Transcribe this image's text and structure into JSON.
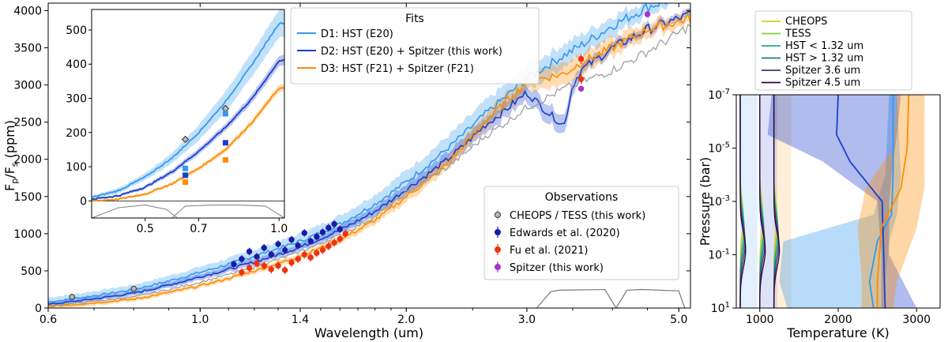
{
  "chart_data": [
    {
      "id": "main",
      "type": "line",
      "xscale": "log",
      "xlim": [
        0.6,
        5.2
      ],
      "ylim": [
        0,
        4100
      ],
      "xlabel": "Wavelength (um)",
      "ylabel": "F_p/F_s (ppm)",
      "xticks": [
        0.6,
        1.0,
        1.4,
        2.0,
        3.0,
        5.0
      ],
      "xtick_labels": [
        "0.6",
        "1.0",
        "1.4",
        "2.0",
        "3.0",
        "5.0"
      ],
      "yticks": [
        0,
        500,
        1000,
        1500,
        2000,
        2500,
        3000,
        3500,
        4000
      ],
      "ytick_labels": [
        "0",
        "500",
        "1000",
        "1500",
        "2000",
        "2500",
        "3000",
        "3500",
        "4000"
      ],
      "fits_legend_title": "Fits",
      "obs_legend_title": "Observations",
      "series": [
        {
          "name": "D1: HST (E20)",
          "color": "#3399ee",
          "x": [
            0.6,
            0.8,
            1.0,
            1.2,
            1.4,
            1.6,
            1.8,
            2.0,
            2.3,
            2.6,
            3.0,
            3.4,
            4.0,
            4.5,
            5.2
          ],
          "y": [
            80,
            250,
            480,
            700,
            900,
            1130,
            1400,
            1700,
            2150,
            2600,
            3100,
            3400,
            3800,
            4050,
            4250
          ],
          "band": [
            120,
            130,
            150,
            170,
            200,
            230,
            260,
            300,
            320,
            340,
            350,
            300,
            250,
            200,
            150
          ]
        },
        {
          "name": "D2: HST (E20) + Spitzer (this work)",
          "color": "#1a3fcc",
          "x": [
            0.6,
            0.8,
            1.0,
            1.2,
            1.4,
            1.6,
            1.8,
            2.0,
            2.3,
            2.6,
            3.0,
            3.2,
            3.4,
            3.5,
            3.6,
            4.0,
            4.5,
            5.2
          ],
          "y": [
            50,
            200,
            420,
            620,
            820,
            1050,
            1300,
            1600,
            2000,
            2450,
            2900,
            2650,
            2450,
            3000,
            3200,
            3500,
            3750,
            3950
          ],
          "band": [
            60,
            70,
            80,
            90,
            100,
            110,
            120,
            150,
            180,
            200,
            220,
            250,
            250,
            220,
            150,
            120,
            110,
            100
          ]
        },
        {
          "name": "D3: HST (F21) + Spitzer (F21)",
          "color": "#ff8c00",
          "x": [
            0.6,
            0.8,
            1.0,
            1.2,
            1.4,
            1.6,
            1.8,
            2.0,
            2.3,
            2.6,
            3.0,
            3.4,
            3.6,
            4.0,
            4.5,
            5.2
          ],
          "y": [
            20,
            120,
            300,
            500,
            700,
            920,
            1180,
            1500,
            1950,
            2500,
            3050,
            3150,
            3300,
            3500,
            3750,
            3900
          ],
          "band": [
            60,
            60,
            60,
            70,
            80,
            100,
            120,
            150,
            180,
            200,
            250,
            300,
            280,
            250,
            200,
            150
          ]
        },
        {
          "name": "grey model",
          "color": "#999999",
          "x": [
            0.6,
            0.8,
            1.0,
            1.2,
            1.4,
            1.6,
            1.8,
            2.0,
            2.3,
            2.6,
            3.0,
            3.4,
            4.0,
            4.5,
            5.2
          ],
          "y": [
            30,
            150,
            350,
            550,
            760,
            980,
            1230,
            1550,
            1900,
            2300,
            2700,
            2950,
            3200,
            3450,
            3800
          ],
          "band": null
        }
      ],
      "observations": [
        {
          "name": "CHEOPS / TESS (this work)",
          "color": "#bbbbbb",
          "points": [
            {
              "x": 0.65,
              "y": 150,
              "e": 25
            },
            {
              "x": 0.8,
              "y": 260,
              "e": 25
            }
          ]
        },
        {
          "name": "Edwards et al. (2020)",
          "color": "#1a1aaa",
          "points": [
            {
              "x": 1.12,
              "y": 590,
              "e": 50
            },
            {
              "x": 1.15,
              "y": 660,
              "e": 50
            },
            {
              "x": 1.18,
              "y": 760,
              "e": 50
            },
            {
              "x": 1.21,
              "y": 690,
              "e": 50
            },
            {
              "x": 1.24,
              "y": 810,
              "e": 50
            },
            {
              "x": 1.27,
              "y": 720,
              "e": 50
            },
            {
              "x": 1.3,
              "y": 860,
              "e": 50
            },
            {
              "x": 1.33,
              "y": 780,
              "e": 50
            },
            {
              "x": 1.36,
              "y": 920,
              "e": 50
            },
            {
              "x": 1.39,
              "y": 840,
              "e": 50
            },
            {
              "x": 1.42,
              "y": 1010,
              "e": 50
            },
            {
              "x": 1.45,
              "y": 900,
              "e": 50
            },
            {
              "x": 1.48,
              "y": 960,
              "e": 50
            },
            {
              "x": 1.51,
              "y": 1020,
              "e": 50
            },
            {
              "x": 1.54,
              "y": 1080,
              "e": 50
            },
            {
              "x": 1.57,
              "y": 1130,
              "e": 50
            },
            {
              "x": 1.6,
              "y": 1060,
              "e": 50
            }
          ]
        },
        {
          "name": "Fu et al. (2021)",
          "color": "#ee3311",
          "points": [
            {
              "x": 1.15,
              "y": 480,
              "e": 55
            },
            {
              "x": 1.18,
              "y": 540,
              "e": 55
            },
            {
              "x": 1.21,
              "y": 600,
              "e": 55
            },
            {
              "x": 1.24,
              "y": 570,
              "e": 55
            },
            {
              "x": 1.27,
              "y": 520,
              "e": 55
            },
            {
              "x": 1.3,
              "y": 570,
              "e": 55
            },
            {
              "x": 1.33,
              "y": 510,
              "e": 55
            },
            {
              "x": 1.36,
              "y": 610,
              "e": 55
            },
            {
              "x": 1.39,
              "y": 660,
              "e": 55
            },
            {
              "x": 1.42,
              "y": 720,
              "e": 55
            },
            {
              "x": 1.45,
              "y": 680,
              "e": 55
            },
            {
              "x": 1.48,
              "y": 740,
              "e": 55
            },
            {
              "x": 1.51,
              "y": 780,
              "e": 55
            },
            {
              "x": 1.54,
              "y": 830,
              "e": 55
            },
            {
              "x": 1.57,
              "y": 880,
              "e": 55
            },
            {
              "x": 1.6,
              "y": 930,
              "e": 55
            },
            {
              "x": 1.63,
              "y": 1000,
              "e": 55
            },
            {
              "x": 3.6,
              "y": 3080,
              "e": 70
            },
            {
              "x": 3.6,
              "y": 3350,
              "e": 70
            }
          ]
        },
        {
          "name": "Spitzer (this work)",
          "color": "#aa33cc",
          "points": [
            {
              "x": 3.6,
              "y": 2950,
              "e": 40
            },
            {
              "x": 4.5,
              "y": 3950,
              "e": 40
            }
          ]
        }
      ],
      "filter_curves": [
        {
          "x": [
            3.1,
            3.25,
            3.35,
            3.9,
            4.05,
            4.2,
            4.4,
            5.0,
            5.1
          ],
          "y": [
            0,
            220,
            240,
            250,
            0,
            240,
            250,
            230,
            0
          ]
        }
      ],
      "inset": {
        "xlim": [
          0.3,
          1.02
        ],
        "ylim": [
          -50,
          560
        ],
        "xticks": [
          0.5,
          0.7,
          1.0
        ],
        "xtick_labels": [
          "0.5",
          "0.7",
          "1.0"
        ],
        "yticks": [
          0,
          100,
          200,
          300,
          400,
          500
        ],
        "ytick_labels": [
          "0",
          "100",
          "200",
          "300",
          "400",
          "500"
        ],
        "series": [
          {
            "color": "#3399ee",
            "x": [
              0.3,
              0.4,
              0.5,
              0.6,
              0.7,
              0.8,
              0.9,
              1.0
            ],
            "y": [
              10,
              30,
              70,
              125,
              200,
              290,
              400,
              520
            ],
            "band": [
              10,
              15,
              20,
              30,
              45,
              60,
              70,
              80
            ]
          },
          {
            "color": "#1a3fcc",
            "x": [
              0.3,
              0.4,
              0.5,
              0.6,
              0.7,
              0.8,
              0.9,
              1.0
            ],
            "y": [
              5,
              15,
              40,
              85,
              145,
              215,
              300,
              410
            ],
            "band": [
              5,
              8,
              10,
              15,
              18,
              20,
              25,
              30
            ]
          },
          {
            "color": "#ff8c00",
            "x": [
              0.3,
              0.4,
              0.5,
              0.6,
              0.7,
              0.8,
              0.9,
              1.0
            ],
            "y": [
              0,
              5,
              20,
              50,
              95,
              150,
              230,
              330
            ],
            "band": [
              5,
              5,
              8,
              10,
              12,
              15,
              18,
              20
            ]
          }
        ],
        "markers": [
          {
            "color": "#bbbbbb",
            "shape": "diamond",
            "x": 0.65,
            "y": 180
          },
          {
            "color": "#bbbbbb",
            "shape": "diamond",
            "x": 0.8,
            "y": 270
          },
          {
            "color": "#3399ee",
            "shape": "square",
            "x": 0.65,
            "y": 95
          },
          {
            "color": "#3399ee",
            "shape": "square",
            "x": 0.8,
            "y": 255
          },
          {
            "color": "#1a3fcc",
            "shape": "square",
            "x": 0.65,
            "y": 75
          },
          {
            "color": "#1a3fcc",
            "shape": "square",
            "x": 0.8,
            "y": 170
          },
          {
            "color": "#ff8c00",
            "shape": "square",
            "x": 0.65,
            "y": 55
          },
          {
            "color": "#ff8c00",
            "shape": "square",
            "x": 0.8,
            "y": 120
          }
        ],
        "filter_curves": [
          {
            "x": [
              0.3,
              0.4,
              0.5,
              0.58,
              0.62
            ],
            "y": [
              -50,
              -20,
              -12,
              -25,
              -50
            ]
          },
          {
            "x": [
              0.6,
              0.65,
              0.75,
              0.85,
              0.95,
              1.02
            ],
            "y": [
              -50,
              -15,
              -12,
              -12,
              -15,
              -50
            ]
          }
        ]
      }
    },
    {
      "id": "tp",
      "type": "line",
      "xlim": [
        700,
        3300
      ],
      "ylim_log10": [
        -7,
        1
      ],
      "xlabel": "Temperature (K)",
      "ylabel": "Pressure (bar)",
      "xticks": [
        1000,
        2000,
        3000
      ],
      "xtick_labels": [
        "1000",
        "2000",
        "3000"
      ],
      "yticks": [
        -7,
        -5,
        -3,
        -1,
        1
      ],
      "ytick_labels": [
        "10^-7",
        "10^-5",
        "10^-3",
        "10^-1",
        "10^1"
      ],
      "legend": [
        {
          "name": "CHEOPS",
          "color": "#ddcc22"
        },
        {
          "name": "TESS",
          "color": "#88cc44"
        },
        {
          "name": "HST  < 1.32 um",
          "color": "#22aa88"
        },
        {
          "name": "HST  > 1.32 um",
          "color": "#227788"
        },
        {
          "name": "Spitzer 3.6 um",
          "color": "#443377"
        },
        {
          "name": "Spitzer 4.5 um",
          "color": "#330044"
        }
      ],
      "profiles": [
        {
          "name": "D1",
          "color": "#3399ee",
          "x": [
            2700,
            2700,
            2680,
            2500,
            2400,
            2450
          ],
          "y": [
            -7,
            -4,
            -2.5,
            -1.5,
            0,
            1
          ],
          "band_lo": [
            2650,
            2600,
            2450,
            1300,
            1250,
            1350
          ],
          "band_hi": [
            2750,
            2800,
            2750,
            2650,
            2600,
            2600
          ]
        },
        {
          "name": "D2",
          "color": "#1a3fcc",
          "x": [
            2000,
            1980,
            2150,
            2560,
            2580,
            2600
          ],
          "y": [
            -7,
            -5.5,
            -4.5,
            -3,
            -1,
            1
          ],
          "band_lo": [
            1150,
            1100,
            1800,
            2500,
            2550,
            2550
          ],
          "band_hi": [
            2800,
            2750,
            2700,
            2650,
            2650,
            3000
          ]
        },
        {
          "name": "D3",
          "color": "#ff8c00",
          "x": [
            2900,
            2880,
            2800,
            2550,
            2500,
            2500
          ],
          "y": [
            -7,
            -5,
            -3.5,
            -2,
            0,
            1
          ],
          "band_lo": [
            2750,
            2700,
            2350,
            2250,
            2300,
            2300
          ],
          "band_hi": [
            3100,
            3100,
            3100,
            3000,
            2750,
            2700
          ]
        }
      ],
      "contribution_columns": [
        {
          "base": 750,
          "color": "#3399ee"
        },
        {
          "base": 1000,
          "color": "#1a3fcc"
        },
        {
          "base": 1180,
          "color": "#ff8c00"
        }
      ]
    }
  ]
}
